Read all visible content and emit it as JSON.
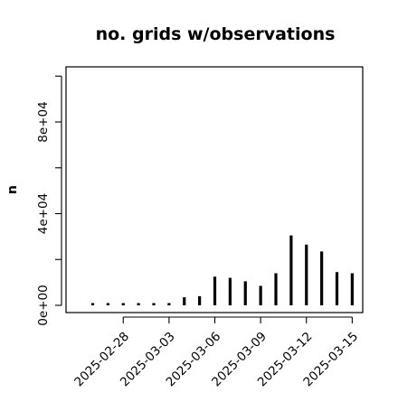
{
  "chart_data": {
    "type": "bar",
    "title": "no. grids w/observations",
    "ylabel": "n",
    "xlabel": "",
    "ylim": [
      -2000,
      103000
    ],
    "yticks": [
      {
        "value": 0,
        "label": "0e+00"
      },
      {
        "value": 40000,
        "label": "4e+04"
      },
      {
        "value": 80000,
        "label": "8e+04"
      }
    ],
    "yticks_minor": [
      20000,
      60000,
      100000
    ],
    "xlim": [
      0,
      18.8
    ],
    "x_ticks": [
      {
        "x": 2,
        "label": "2025-02-28",
        "color": "#000000"
      },
      {
        "x": 5,
        "label": "2025-03-03",
        "color": "#000000"
      },
      {
        "x": 8,
        "label": "2025-03-06",
        "color": "#228b22"
      },
      {
        "x": 11,
        "label": "2025-03-09",
        "color": "#000000"
      },
      {
        "x": 14,
        "label": "2025-03-12",
        "color": "#000000"
      },
      {
        "x": 17,
        "label": "2025-03-15",
        "color": "#000000"
      }
    ],
    "categories": [
      "2025-02-26",
      "2025-02-27",
      "2025-02-28",
      "2025-03-01",
      "2025-03-02",
      "2025-03-03",
      "2025-03-04",
      "2025-03-05",
      "2025-03-06",
      "2025-03-07",
      "2025-03-08",
      "2025-03-09",
      "2025-03-10",
      "2025-03-11",
      "2025-03-12",
      "2025-03-13",
      "2025-03-14",
      "2025-03-15"
    ],
    "x": [
      0,
      1,
      2,
      3,
      4,
      5,
      6,
      7,
      8,
      9,
      10,
      11,
      12,
      13,
      14,
      15,
      16,
      17
    ],
    "values": [
      300,
      400,
      400,
      500,
      600,
      700,
      3500,
      4000,
      12500,
      12000,
      10500,
      8500,
      14000,
      30500,
      26500,
      23500,
      14500,
      14000
    ],
    "grid": false,
    "legend": "none",
    "bar_color": "#000000"
  }
}
